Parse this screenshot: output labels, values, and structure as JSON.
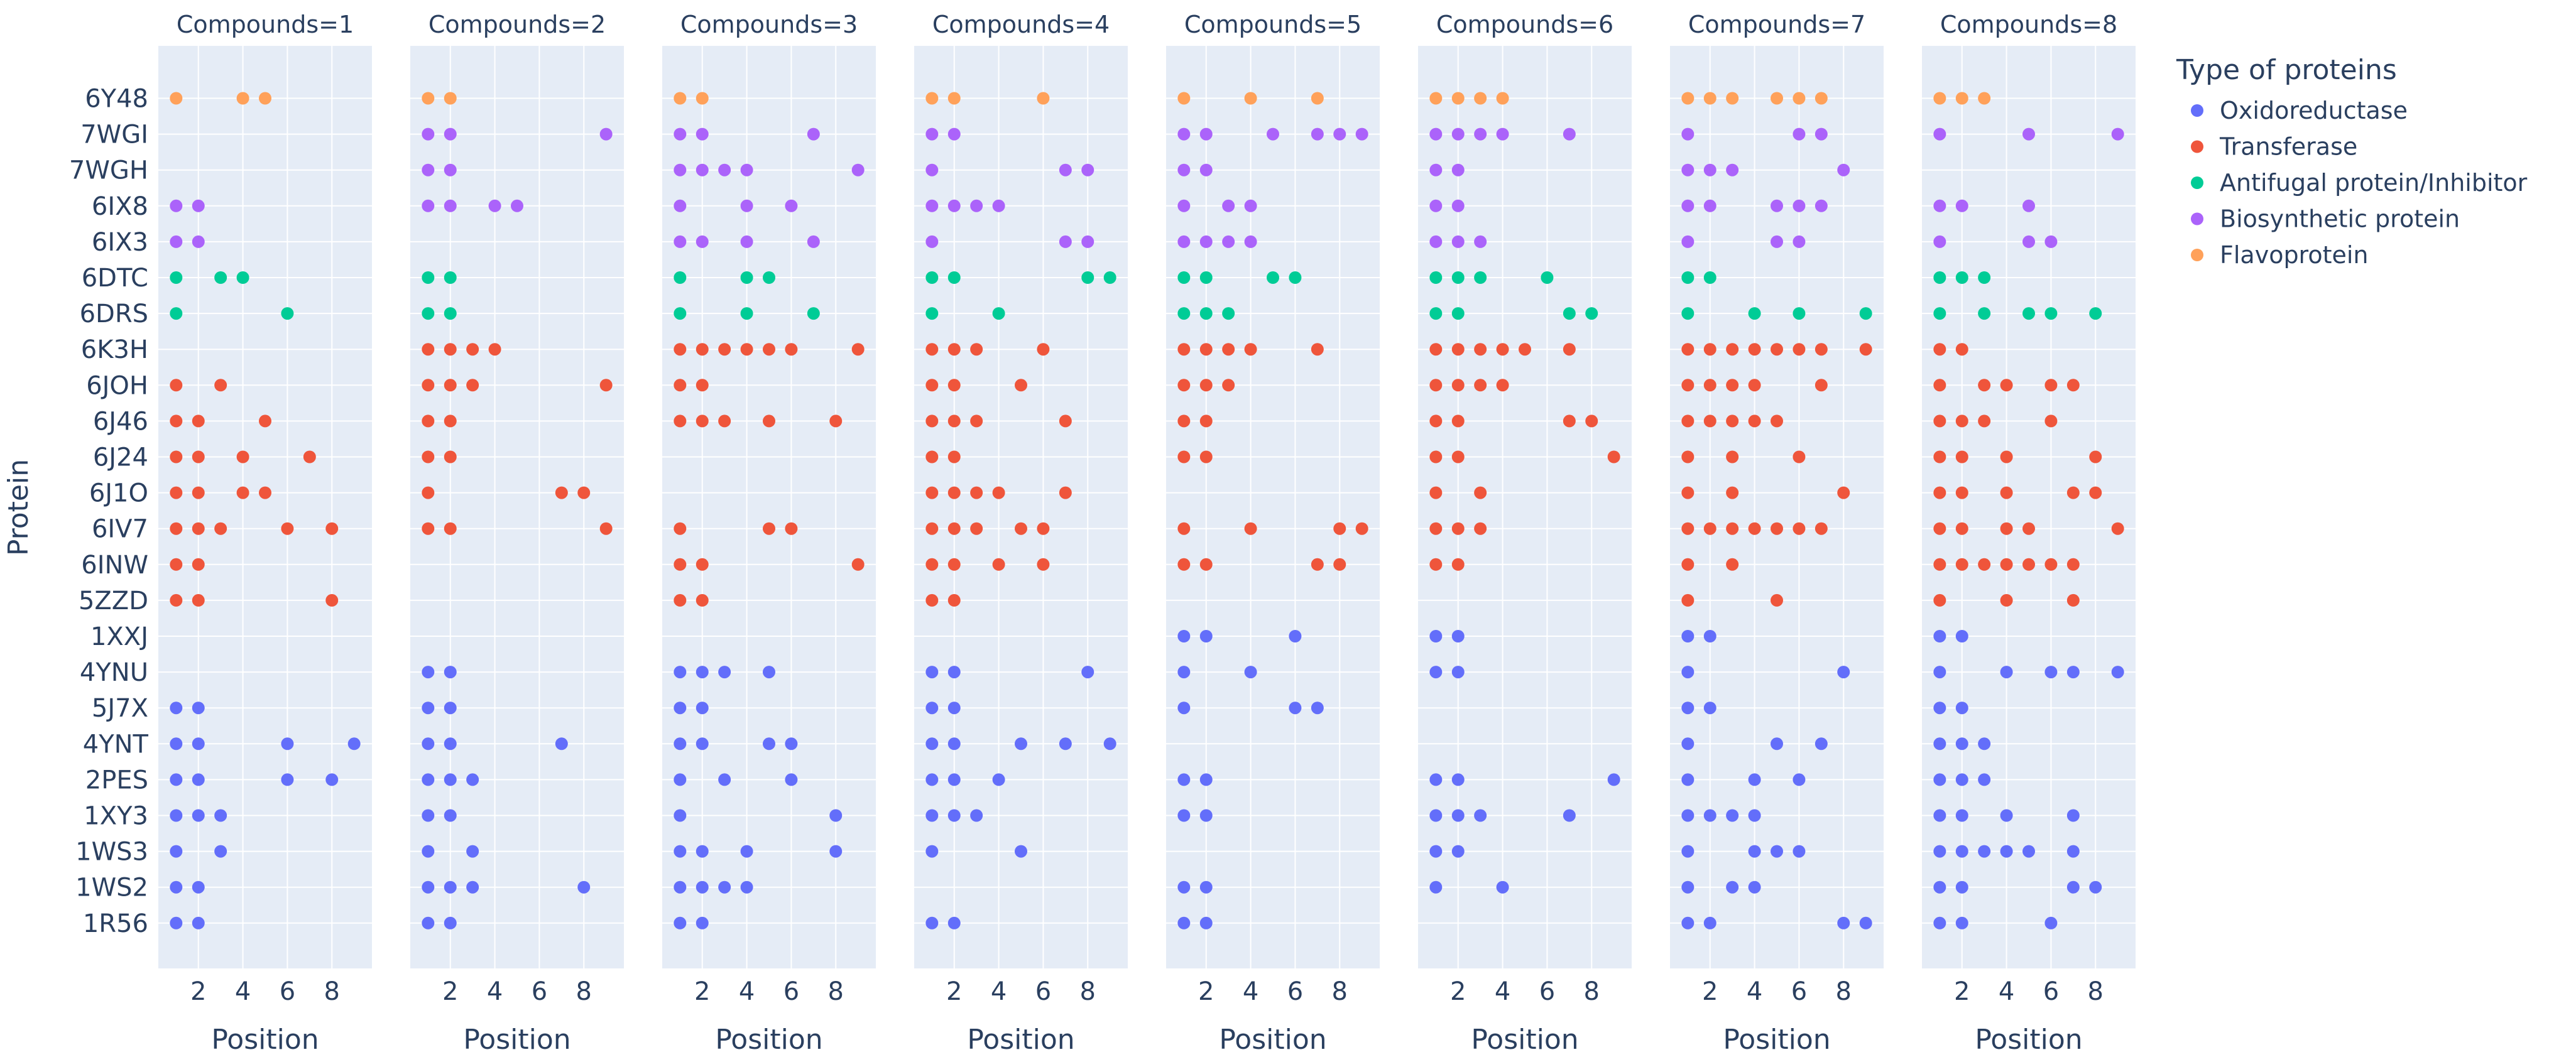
{
  "chart_data": {
    "type": "scatter",
    "facet_label": "Compounds",
    "facets": [
      1,
      2,
      3,
      4,
      5,
      6,
      7,
      8
    ],
    "xlabel": "Position",
    "ylabel": "Protein",
    "xlim": [
      0.2,
      9.8
    ],
    "xticks": [
      2,
      4,
      6,
      8
    ],
    "proteins": [
      "6Y48",
      "7WGI",
      "7WGH",
      "6IX8",
      "6IX3",
      "6DTC",
      "6DRS",
      "6K3H",
      "6JOH",
      "6J46",
      "6J24",
      "6J1O",
      "6IV7",
      "6INW",
      "5ZZD",
      "1XXJ",
      "4YNU",
      "5J7X",
      "4YNT",
      "2PES",
      "1XY3",
      "1WS3",
      "1WS2",
      "1R56"
    ],
    "legend_title": "Type of proteins",
    "types": [
      {
        "name": "Oxidoreductase",
        "color": "#636efa"
      },
      {
        "name": "Transferase",
        "color": "#ef553b"
      },
      {
        "name": "Antifugal protein/Inhibitor",
        "color": "#00cc96"
      },
      {
        "name": "Biosynthetic protein",
        "color": "#ab63fa"
      },
      {
        "name": "Flavoprotein",
        "color": "#ffa15a"
      }
    ],
    "protein_types": {
      "6Y48": "Flavoprotein",
      "7WGI": "Biosynthetic protein",
      "7WGH": "Biosynthetic protein",
      "6IX8": "Biosynthetic protein",
      "6IX3": "Biosynthetic protein",
      "6DTC": "Antifugal protein/Inhibitor",
      "6DRS": "Antifugal protein/Inhibitor",
      "6K3H": "Transferase",
      "6JOH": "Transferase",
      "6J46": "Transferase",
      "6J24": "Transferase",
      "6J1O": "Transferase",
      "6IV7": "Transferase",
      "6INW": "Transferase",
      "5ZZD": "Transferase",
      "1XXJ": "Oxidoreductase",
      "4YNU": "Oxidoreductase",
      "5J7X": "Oxidoreductase",
      "4YNT": "Oxidoreductase",
      "2PES": "Oxidoreductase",
      "1XY3": "Oxidoreductase",
      "1WS3": "Oxidoreductase",
      "1WS2": "Oxidoreductase",
      "1R56": "Oxidoreductase"
    },
    "points": {
      "1": {
        "6Y48": [
          1,
          4,
          5
        ],
        "7WGI": [],
        "7WGH": [],
        "6IX8": [
          1,
          2
        ],
        "6IX3": [
          1,
          2
        ],
        "6DTC": [
          1,
          3,
          4
        ],
        "6DRS": [
          1,
          6
        ],
        "6K3H": [],
        "6JOH": [
          1,
          3
        ],
        "6J46": [
          1,
          2,
          5
        ],
        "6J24": [
          1,
          2,
          4,
          7
        ],
        "6J1O": [
          1,
          2,
          4,
          5
        ],
        "6IV7": [
          1,
          2,
          3,
          6,
          8
        ],
        "6INW": [
          1,
          2
        ],
        "5ZZD": [
          1,
          2,
          8
        ],
        "1XXJ": [],
        "4YNU": [],
        "5J7X": [
          1,
          2
        ],
        "4YNT": [
          1,
          2,
          6,
          9
        ],
        "2PES": [
          1,
          2,
          6,
          8
        ],
        "1XY3": [
          1,
          2,
          3
        ],
        "1WS3": [
          1,
          3
        ],
        "1WS2": [
          1,
          2
        ],
        "1R56": [
          1,
          2
        ]
      },
      "2": {
        "6Y48": [
          1,
          2
        ],
        "7WGI": [
          1,
          2,
          9
        ],
        "7WGH": [
          1,
          2
        ],
        "6IX8": [
          1,
          2,
          4,
          5
        ],
        "6IX3": [],
        "6DTC": [
          1,
          2
        ],
        "6DRS": [
          1,
          2
        ],
        "6K3H": [
          1,
          2,
          3,
          4
        ],
        "6JOH": [
          1,
          2,
          3,
          9
        ],
        "6J46": [
          1,
          2
        ],
        "6J24": [
          1,
          2
        ],
        "6J1O": [
          1,
          7,
          8
        ],
        "6IV7": [
          1,
          2,
          9
        ],
        "6INW": [],
        "5ZZD": [],
        "1XXJ": [],
        "4YNU": [
          1,
          2
        ],
        "5J7X": [
          1,
          2
        ],
        "4YNT": [
          1,
          2,
          7
        ],
        "2PES": [
          1,
          2,
          3
        ],
        "1XY3": [
          1,
          2
        ],
        "1WS3": [
          1,
          3
        ],
        "1WS2": [
          1,
          2,
          3,
          8
        ],
        "1R56": [
          1,
          2
        ]
      },
      "3": {
        "6Y48": [
          1,
          2
        ],
        "7WGI": [
          1,
          2,
          7
        ],
        "7WGH": [
          1,
          2,
          3,
          4,
          9
        ],
        "6IX8": [
          1,
          4,
          6
        ],
        "6IX3": [
          1,
          2,
          4,
          7
        ],
        "6DTC": [
          1,
          4,
          5
        ],
        "6DRS": [
          1,
          4,
          7
        ],
        "6K3H": [
          1,
          2,
          3,
          4,
          5,
          6,
          9
        ],
        "6JOH": [
          1,
          2
        ],
        "6J46": [
          1,
          2,
          3,
          5,
          8
        ],
        "6J24": [],
        "6J1O": [],
        "6IV7": [
          1,
          5,
          6
        ],
        "6INW": [
          1,
          2,
          9
        ],
        "5ZZD": [
          1,
          2
        ],
        "1XXJ": [],
        "4YNU": [
          1,
          2,
          3,
          5
        ],
        "5J7X": [
          1,
          2
        ],
        "4YNT": [
          1,
          2,
          5,
          6
        ],
        "2PES": [
          1,
          3,
          6
        ],
        "1XY3": [
          1,
          8
        ],
        "1WS3": [
          1,
          2,
          4,
          8
        ],
        "1WS2": [
          1,
          2,
          3,
          4
        ],
        "1R56": [
          1,
          2
        ]
      },
      "4": {
        "6Y48": [
          1,
          2,
          6
        ],
        "7WGI": [
          1,
          2
        ],
        "7WGH": [
          1,
          7,
          8
        ],
        "6IX8": [
          1,
          2,
          3,
          4
        ],
        "6IX3": [
          1,
          7,
          8
        ],
        "6DTC": [
          1,
          2,
          8,
          9
        ],
        "6DRS": [
          1,
          4
        ],
        "6K3H": [
          1,
          2,
          3,
          6
        ],
        "6JOH": [
          1,
          2,
          5
        ],
        "6J46": [
          1,
          2,
          3,
          7
        ],
        "6J24": [
          1,
          2
        ],
        "6J1O": [
          1,
          2,
          3,
          4,
          7
        ],
        "6IV7": [
          1,
          2,
          3,
          5,
          6
        ],
        "6INW": [
          1,
          2,
          4,
          6
        ],
        "5ZZD": [
          1,
          2
        ],
        "1XXJ": [],
        "4YNU": [
          1,
          2,
          8
        ],
        "5J7X": [
          1,
          2
        ],
        "4YNT": [
          1,
          2,
          5,
          7,
          9
        ],
        "2PES": [
          1,
          2,
          4
        ],
        "1XY3": [
          1,
          2,
          3
        ],
        "1WS3": [
          1,
          5
        ],
        "1WS2": [],
        "1R56": [
          1,
          2
        ]
      },
      "5": {
        "6Y48": [
          1,
          4,
          7
        ],
        "7WGI": [
          1,
          2,
          5,
          7,
          8,
          9
        ],
        "7WGH": [
          1,
          2
        ],
        "6IX8": [
          1,
          3,
          4
        ],
        "6IX3": [
          1,
          2,
          3,
          4
        ],
        "6DTC": [
          1,
          2,
          5,
          6
        ],
        "6DRS": [
          1,
          2,
          3
        ],
        "6K3H": [
          1,
          2,
          3,
          4,
          7
        ],
        "6JOH": [
          1,
          2,
          3
        ],
        "6J46": [
          1,
          2
        ],
        "6J24": [
          1,
          2
        ],
        "6J1O": [],
        "6IV7": [
          1,
          4,
          8,
          9
        ],
        "6INW": [
          1,
          2,
          7,
          8
        ],
        "5ZZD": [],
        "1XXJ": [
          1,
          2,
          6
        ],
        "4YNU": [
          1,
          4
        ],
        "5J7X": [
          1,
          6,
          7
        ],
        "4YNT": [],
        "2PES": [
          1,
          2
        ],
        "1XY3": [
          1,
          2
        ],
        "1WS3": [],
        "1WS2": [
          1,
          2
        ],
        "1R56": [
          1,
          2
        ]
      },
      "6": {
        "6Y48": [
          1,
          2,
          3,
          4
        ],
        "7WGI": [
          1,
          2,
          3,
          4,
          7
        ],
        "7WGH": [
          1,
          2
        ],
        "6IX8": [
          1,
          2
        ],
        "6IX3": [
          1,
          2,
          3
        ],
        "6DTC": [
          1,
          2,
          3,
          6
        ],
        "6DRS": [
          1,
          2,
          7,
          8
        ],
        "6K3H": [
          1,
          2,
          3,
          4,
          5,
          7
        ],
        "6JOH": [
          1,
          2,
          3,
          4
        ],
        "6J46": [
          1,
          2,
          7,
          8
        ],
        "6J24": [
          1,
          2,
          9
        ],
        "6J1O": [
          1,
          3
        ],
        "6IV7": [
          1,
          2,
          3
        ],
        "6INW": [
          1,
          2
        ],
        "5ZZD": [],
        "1XXJ": [
          1,
          2
        ],
        "4YNU": [
          1,
          2
        ],
        "5J7X": [],
        "4YNT": [],
        "2PES": [
          1,
          2,
          9
        ],
        "1XY3": [
          1,
          2,
          3,
          7
        ],
        "1WS3": [
          1,
          2
        ],
        "1WS2": [
          1,
          4
        ],
        "1R56": []
      },
      "7": {
        "6Y48": [
          1,
          2,
          3,
          5,
          6,
          7
        ],
        "7WGI": [
          1,
          6,
          7
        ],
        "7WGH": [
          1,
          2,
          3,
          8
        ],
        "6IX8": [
          1,
          2,
          5,
          6,
          7
        ],
        "6IX3": [
          1,
          5,
          6
        ],
        "6DTC": [
          1,
          2
        ],
        "6DRS": [
          1,
          4,
          6,
          9
        ],
        "6K3H": [
          1,
          2,
          3,
          4,
          5,
          6,
          7,
          9
        ],
        "6JOH": [
          1,
          2,
          3,
          4,
          7
        ],
        "6J46": [
          1,
          2,
          3,
          4,
          5
        ],
        "6J24": [
          1,
          3,
          6
        ],
        "6J1O": [
          1,
          3,
          8
        ],
        "6IV7": [
          1,
          2,
          3,
          4,
          5,
          6,
          7
        ],
        "6INW": [
          1,
          3
        ],
        "5ZZD": [
          1,
          5
        ],
        "1XXJ": [
          1,
          2
        ],
        "4YNU": [
          1,
          8
        ],
        "5J7X": [
          1,
          2
        ],
        "4YNT": [
          1,
          5,
          7
        ],
        "2PES": [
          1,
          4,
          6
        ],
        "1XY3": [
          1,
          2,
          3,
          4
        ],
        "1WS3": [
          1,
          4,
          5,
          6
        ],
        "1WS2": [
          1,
          3,
          4
        ],
        "1R56": [
          1,
          2,
          8,
          9
        ]
      },
      "8": {
        "6Y48": [
          1,
          2,
          3
        ],
        "7WGI": [
          1,
          5,
          9
        ],
        "7WGH": [],
        "6IX8": [
          1,
          2,
          5
        ],
        "6IX3": [
          1,
          5,
          6
        ],
        "6DTC": [
          1,
          2,
          3
        ],
        "6DRS": [
          1,
          3,
          5,
          6,
          8
        ],
        "6K3H": [
          1,
          2
        ],
        "6JOH": [
          1,
          3,
          4,
          6,
          7
        ],
        "6J46": [
          1,
          2,
          3,
          6
        ],
        "6J24": [
          1,
          2,
          4,
          8
        ],
        "6J1O": [
          1,
          2,
          4,
          7,
          8
        ],
        "6IV7": [
          1,
          2,
          4,
          5,
          9
        ],
        "6INW": [
          1,
          2,
          3,
          4,
          5,
          6,
          7
        ],
        "5ZZD": [
          1,
          4,
          7
        ],
        "1XXJ": [
          1,
          2
        ],
        "4YNU": [
          1,
          4,
          6,
          7,
          9
        ],
        "5J7X": [
          1,
          2
        ],
        "4YNT": [
          1,
          2,
          3
        ],
        "2PES": [
          1,
          2,
          3
        ],
        "1XY3": [
          1,
          2,
          4,
          7
        ],
        "1WS3": [
          1,
          2,
          3,
          4,
          5,
          7
        ],
        "1WS2": [
          1,
          2,
          7,
          8
        ],
        "1R56": [
          1,
          2,
          6
        ]
      }
    }
  }
}
